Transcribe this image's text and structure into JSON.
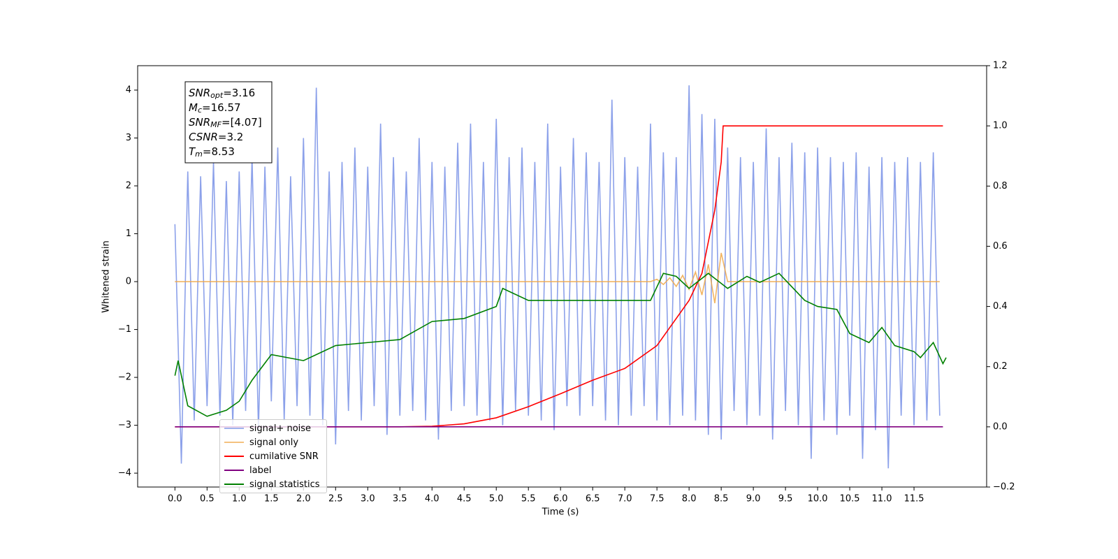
{
  "chart_data": {
    "type": "line",
    "xlabel": "Time (s)",
    "ylabel": "Whitened strain",
    "xlim": [
      -0.58,
      12.63
    ],
    "ylim": [
      -4.29,
      4.51
    ],
    "y2lim": [
      -0.2,
      1.2
    ],
    "xticks": [
      {
        "value": 0,
        "label": "0.0"
      },
      {
        "value": 0.5,
        "label": "0.5"
      },
      {
        "value": 1,
        "label": "1.0"
      },
      {
        "value": 1.5,
        "label": "1.5"
      },
      {
        "value": 2,
        "label": "2.0"
      },
      {
        "value": 2.5,
        "label": "2.5"
      },
      {
        "value": 3,
        "label": "3.0"
      },
      {
        "value": 3.5,
        "label": "3.5"
      },
      {
        "value": 4,
        "label": "4.0"
      },
      {
        "value": 4.5,
        "label": "4.5"
      },
      {
        "value": 5,
        "label": "5.0"
      },
      {
        "value": 5.5,
        "label": "5.5"
      },
      {
        "value": 6,
        "label": "6.0"
      },
      {
        "value": 6.5,
        "label": "6.5"
      },
      {
        "value": 7,
        "label": "7.0"
      },
      {
        "value": 7.5,
        "label": "7.5"
      },
      {
        "value": 8,
        "label": "8.0"
      },
      {
        "value": 8.5,
        "label": "8.5"
      },
      {
        "value": 9,
        "label": "9.0"
      },
      {
        "value": 9.5,
        "label": "9.5"
      },
      {
        "value": 10,
        "label": "10.0"
      },
      {
        "value": 10.5,
        "label": "10.5"
      },
      {
        "value": 11,
        "label": "11.0"
      },
      {
        "value": 11.5,
        "label": "11.5"
      }
    ],
    "yticks": [
      {
        "value": -4,
        "label": "−4"
      },
      {
        "value": -3,
        "label": "−3"
      },
      {
        "value": -2,
        "label": "−2"
      },
      {
        "value": -1,
        "label": "−1"
      },
      0,
      1,
      2,
      3,
      4
    ],
    "y2ticks": [
      {
        "value": -0.2,
        "label": "−0.2"
      },
      {
        "value": 0,
        "label": "0.0"
      },
      {
        "value": 0.2,
        "label": "0.2"
      },
      {
        "value": 0.4,
        "label": "0.4"
      },
      {
        "value": 0.6,
        "label": "0.6"
      },
      {
        "value": 0.8,
        "label": "0.8"
      },
      {
        "value": 1,
        "label": "1.0"
      },
      {
        "value": 1.2,
        "label": "1.2"
      }
    ],
    "legend": "lower left",
    "annotation": [
      {
        "symbol": "SNR",
        "sub": "opt",
        "text": "=3.16"
      },
      {
        "symbol": "M",
        "sub": "c",
        "text": "=16.57"
      },
      {
        "symbol": "SNR",
        "sub": "MF",
        "text": "=[4.07]"
      },
      {
        "symbol": "CSNR",
        "text": "=3.2"
      },
      {
        "symbol": "T",
        "sub": "m",
        "text": "=8.53"
      }
    ],
    "x": [
      0.0,
      0.1,
      0.2,
      0.3,
      0.4,
      0.5,
      0.6,
      0.7,
      0.8,
      0.9,
      1.0,
      1.1,
      1.2,
      1.3,
      1.4,
      1.5,
      1.6,
      1.7,
      1.8,
      1.9,
      2.0,
      2.1,
      2.2,
      2.3,
      2.4,
      2.5,
      2.6,
      2.7,
      2.8,
      2.9,
      3.0,
      3.1,
      3.2,
      3.3,
      3.4,
      3.5,
      3.6,
      3.7,
      3.8,
      3.9,
      4.0,
      4.1,
      4.2,
      4.3,
      4.4,
      4.5,
      4.6,
      4.7,
      4.8,
      4.9,
      5.0,
      5.1,
      5.2,
      5.3,
      5.4,
      5.5,
      5.6,
      5.7,
      5.8,
      5.9,
      6.0,
      6.1,
      6.2,
      6.3,
      6.4,
      6.5,
      6.6,
      6.7,
      6.8,
      6.9,
      7.0,
      7.1,
      7.2,
      7.3,
      7.4,
      7.5,
      7.6,
      7.7,
      7.8,
      7.9,
      8.0,
      8.1,
      8.2,
      8.3,
      8.4,
      8.5,
      8.6,
      8.7,
      8.8,
      8.9,
      9.0,
      9.1,
      9.2,
      9.3,
      9.4,
      9.5,
      9.6,
      9.7,
      9.8,
      9.9,
      10.0,
      10.1,
      10.2,
      10.3,
      10.4,
      10.5,
      10.6,
      10.7,
      10.8,
      10.9,
      11.0,
      11.1,
      11.2,
      11.3,
      11.4,
      11.5,
      11.6,
      11.7,
      11.8,
      11.9
    ],
    "series": [
      {
        "name": "signal+ noise",
        "color": "#7891e6",
        "values": [
          1.2,
          -3.8,
          2.3,
          -2.9,
          2.2,
          -2.6,
          2.5,
          -2.8,
          2.1,
          -3.0,
          2.3,
          -2.7,
          2.6,
          -3.1,
          2.4,
          -2.5,
          2.8,
          -2.9,
          2.2,
          -2.6,
          3.0,
          -2.8,
          4.05,
          -3.0,
          2.3,
          -3.4,
          2.5,
          -2.7,
          2.8,
          -2.9,
          2.4,
          -2.6,
          3.3,
          -3.2,
          2.6,
          -2.8,
          2.3,
          -2.7,
          3.0,
          -2.9,
          2.5,
          -3.3,
          2.4,
          -2.7,
          2.9,
          -2.6,
          3.3,
          -2.8,
          2.5,
          -2.9,
          3.4,
          -3.0,
          2.6,
          -2.7,
          2.8,
          -2.8,
          2.5,
          -2.9,
          3.3,
          -3.1,
          2.4,
          -2.6,
          3.0,
          -2.8,
          2.7,
          -2.6,
          2.5,
          -2.9,
          3.8,
          -3.0,
          2.6,
          -2.8,
          2.4,
          -2.6,
          3.3,
          -2.9,
          2.7,
          -3.0,
          2.6,
          -2.8,
          4.1,
          -2.9,
          3.5,
          -3.2,
          3.4,
          -3.3,
          2.8,
          -2.7,
          2.6,
          -3.0,
          2.5,
          -2.8,
          3.2,
          -3.3,
          2.6,
          -2.7,
          2.9,
          -3.0,
          2.7,
          -3.7,
          2.8,
          -2.9,
          2.6,
          -3.2,
          2.5,
          -2.8,
          2.7,
          -3.7,
          2.4,
          -3.1,
          2.6,
          -3.9,
          2.5,
          -2.8,
          2.6,
          -3.0,
          2.5,
          -2.9,
          2.7,
          -2.8
        ]
      },
      {
        "name": "signal only",
        "color": "#f0a848",
        "values": [
          0,
          0,
          0,
          0,
          0,
          0,
          0,
          0,
          0,
          0,
          0,
          0,
          0,
          0,
          0,
          0,
          0,
          0,
          0,
          0,
          0,
          0,
          0,
          0,
          0,
          0,
          0,
          0,
          0,
          0,
          0,
          0,
          0,
          0,
          0,
          0,
          0,
          0,
          0,
          0,
          0,
          0,
          0,
          0,
          0,
          0,
          0,
          0,
          0,
          0,
          0,
          0,
          0,
          0,
          0,
          0,
          0,
          0,
          0,
          0,
          0,
          0,
          0,
          0,
          0,
          0,
          0,
          0,
          0,
          0,
          0,
          0,
          0,
          0,
          0,
          0.05,
          -0.06,
          0.08,
          -0.1,
          0.13,
          -0.16,
          0.2,
          -0.28,
          0.36,
          -0.45,
          0.6,
          0,
          0,
          0,
          0,
          0,
          0,
          0,
          0,
          0,
          0,
          0,
          0,
          0,
          0,
          0,
          0,
          0,
          0,
          0,
          0,
          0,
          0,
          0,
          0,
          0,
          0,
          0,
          0,
          0,
          0,
          0,
          0,
          0,
          0
        ]
      },
      {
        "name": "cumilative SNR",
        "color": "#ff0000",
        "axis": "y2",
        "x": [
          0,
          1,
          2,
          3,
          3.5,
          4,
          4.5,
          5,
          5.5,
          6,
          6.5,
          7,
          7.5,
          8,
          8.2,
          8.4,
          8.5,
          8.53,
          9,
          10,
          11,
          11.95
        ],
        "values": [
          0,
          0,
          0,
          0,
          0,
          0.002,
          0.01,
          0.03,
          0.067,
          0.11,
          0.155,
          0.194,
          0.27,
          0.42,
          0.51,
          0.72,
          0.88,
          1,
          1,
          1,
          1,
          1
        ]
      },
      {
        "name": "label",
        "color": "#800080",
        "axis": "y2",
        "x": [
          0,
          11.95
        ],
        "values": [
          0,
          0
        ]
      },
      {
        "name": "signal statistics",
        "color": "#008000",
        "axis": "y2",
        "x": [
          0,
          0.05,
          0.2,
          0.5,
          0.8,
          1,
          1.2,
          1.5,
          2,
          2.5,
          3,
          3.5,
          4,
          4.5,
          5,
          5.1,
          5.5,
          6,
          6.5,
          7,
          7.4,
          7.6,
          7.8,
          8,
          8.3,
          8.6,
          8.9,
          9.1,
          9.4,
          9.8,
          10,
          10.3,
          10.5,
          10.8,
          11,
          11.2,
          11.5,
          11.6,
          11.8,
          11.95,
          12
        ],
        "values": [
          0.17,
          0.22,
          0.07,
          0.035,
          0.055,
          0.085,
          0.155,
          0.24,
          0.22,
          0.27,
          0.28,
          0.29,
          0.35,
          0.36,
          0.4,
          0.46,
          0.42,
          0.42,
          0.42,
          0.42,
          0.42,
          0.51,
          0.5,
          0.46,
          0.51,
          0.46,
          0.5,
          0.48,
          0.51,
          0.42,
          0.4,
          0.39,
          0.31,
          0.28,
          0.33,
          0.27,
          0.25,
          0.23,
          0.28,
          0.21,
          0.23
        ]
      }
    ]
  }
}
